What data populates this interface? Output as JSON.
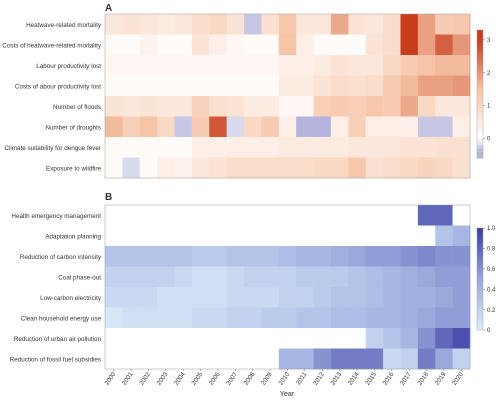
{
  "panels": {
    "a_label": "A",
    "b_label": "B"
  },
  "x_axis": {
    "title": "Year",
    "years": [
      "2000",
      "2001",
      "2002",
      "2003",
      "2004",
      "2005",
      "2006",
      "2007",
      "2008",
      "2009",
      "2010",
      "2011",
      "2012",
      "2013",
      "2014",
      "2015",
      "2016",
      "2017",
      "2018",
      "2019",
      "2020"
    ]
  },
  "chart_data": [
    {
      "type": "heatmap",
      "panel": "A",
      "colormap": "white-to-red",
      "colors": {
        "low": "#ffffff",
        "mid": "#f6c4a6",
        "high": "#c83c1e",
        "negative": "#b4b4dc"
      },
      "colorbar_ticks": [
        "0",
        "1",
        "2",
        "3"
      ],
      "vmin": -0.6,
      "vmax": 3.3,
      "x": [
        "2000",
        "2001",
        "2002",
        "2003",
        "2004",
        "2005",
        "2006",
        "2007",
        "2008",
        "2009",
        "2010",
        "2011",
        "2012",
        "2013",
        "2014",
        "2015",
        "2016",
        "2017",
        "2018",
        "2019",
        "2020"
      ],
      "rows": [
        {
          "label": "Heatwave-related mortality",
          "values": [
            0.6,
            0.7,
            0.6,
            0.5,
            0.6,
            0.9,
            1.0,
            0.7,
            -0.3,
            0.8,
            1.4,
            0.6,
            0.6,
            1.8,
            0.7,
            0.6,
            0.9,
            3.1,
            1.9,
            1.3,
            1.4
          ]
        },
        {
          "label": "Costs of heatwave-related mortality",
          "values": [
            0.1,
            0.1,
            0.3,
            0.1,
            0.1,
            0.7,
            0.4,
            0.2,
            0.1,
            0.1,
            1.5,
            0.4,
            0.1,
            0.1,
            0.1,
            0.7,
            0.9,
            3.0,
            1.9,
            2.6,
            2.0
          ]
        },
        {
          "label": "Labour productivity lost",
          "values": [
            0.2,
            0.2,
            0.2,
            0.2,
            0.2,
            0.2,
            0.2,
            0.2,
            0.2,
            0.2,
            0.4,
            0.4,
            0.5,
            0.7,
            0.6,
            0.6,
            1.0,
            1.3,
            1.5,
            1.6,
            1.6
          ]
        },
        {
          "label": "Costs of abour productivity lost",
          "values": [
            0.1,
            0.1,
            0.1,
            0.1,
            0.1,
            0.1,
            0.1,
            0.1,
            0.1,
            0.1,
            0.5,
            0.5,
            0.7,
            0.9,
            0.8,
            0.9,
            1.3,
            1.6,
            1.9,
            1.9,
            2.0
          ]
        },
        {
          "label": "Number of floods",
          "values": [
            0.7,
            0.6,
            0.7,
            0.6,
            0.6,
            1.1,
            0.8,
            0.7,
            0.5,
            0.5,
            0.2,
            0.2,
            1.2,
            1.3,
            1.2,
            1.4,
            1.3,
            1.8,
            1.0,
            0.6,
            0.6
          ]
        },
        {
          "label": "Number of droughts",
          "values": [
            1.6,
            1.2,
            1.5,
            1.0,
            -0.3,
            1.3,
            2.7,
            -0.2,
            1.0,
            1.3,
            0.4,
            -0.4,
            -0.4,
            0.4,
            1.2,
            0.4,
            0.4,
            0.4,
            -0.3,
            -0.3,
            0.4
          ]
        },
        {
          "label": "Climate suitability for dengue fever",
          "values": [
            0.1,
            0.1,
            0.1,
            0.1,
            0.1,
            0.4,
            0.4,
            0.4,
            0.4,
            0.4,
            0.5,
            0.5,
            0.5,
            0.5,
            0.6,
            0.6,
            0.6,
            0.7,
            0.7,
            0.8,
            0.8
          ]
        },
        {
          "label": "Exposure to wildfire",
          "values": [
            0.1,
            -0.2,
            0.1,
            0.4,
            0.3,
            0.6,
            0.7,
            0.9,
            0.9,
            0.9,
            0.9,
            0.9,
            1.0,
            1.0,
            1.4,
            0.8,
            0.9,
            1.0,
            1.1,
            1.0,
            0.8
          ]
        }
      ]
    },
    {
      "type": "heatmap",
      "panel": "B",
      "colormap": "light-blue-to-navy",
      "colors": {
        "low": "#dceefa",
        "mid": "#9aa8dc",
        "high": "#3a3aa4",
        "empty": "#ffffff"
      },
      "colorbar_ticks": [
        "0",
        "0.2",
        "0.4",
        "0.6",
        "0.8",
        "1.0"
      ],
      "vmin": 0,
      "vmax": 1.0,
      "x": [
        "2000",
        "2001",
        "2002",
        "2003",
        "2004",
        "2005",
        "2006",
        "2007",
        "2008",
        "2009",
        "2010",
        "2011",
        "2012",
        "2013",
        "2014",
        "2015",
        "2016",
        "2017",
        "2018",
        "2019",
        "2020"
      ],
      "rows": [
        {
          "label": "Health emergency management",
          "values": [
            null,
            null,
            null,
            null,
            null,
            null,
            null,
            null,
            null,
            null,
            null,
            null,
            null,
            null,
            null,
            null,
            null,
            null,
            0.8,
            0.8,
            null
          ]
        },
        {
          "label": "Adaptation planning",
          "values": [
            null,
            null,
            null,
            null,
            null,
            null,
            null,
            null,
            null,
            null,
            null,
            null,
            null,
            null,
            null,
            null,
            null,
            null,
            null,
            0.3,
            0.4
          ]
        },
        {
          "label": "Reduction of carbon intensity",
          "values": [
            0.3,
            0.3,
            0.3,
            0.3,
            0.3,
            0.25,
            0.25,
            0.3,
            0.3,
            0.3,
            0.35,
            0.4,
            0.4,
            0.45,
            0.5,
            0.55,
            0.55,
            0.6,
            0.65,
            0.6,
            0.6
          ]
        },
        {
          "label": "Coal phase-out",
          "values": [
            0.2,
            0.2,
            0.2,
            0.2,
            0.15,
            0.1,
            0.1,
            0.15,
            0.2,
            0.2,
            0.2,
            0.25,
            0.25,
            0.25,
            0.3,
            0.35,
            0.4,
            0.45,
            0.5,
            0.55,
            0.55
          ]
        },
        {
          "label": "Low-carbon electricity",
          "values": [
            0.15,
            0.15,
            0.15,
            0.1,
            0.1,
            0.1,
            0.1,
            0.15,
            0.15,
            0.15,
            0.2,
            0.2,
            0.25,
            0.3,
            0.3,
            0.35,
            0.4,
            0.45,
            0.45,
            0.5,
            0.55
          ]
        },
        {
          "label": "Clean household energy use",
          "values": [
            0.05,
            0.1,
            0.1,
            0.1,
            0.1,
            0.15,
            0.15,
            0.2,
            0.2,
            0.25,
            0.25,
            0.3,
            0.3,
            0.35,
            0.35,
            0.4,
            0.4,
            0.45,
            0.5,
            0.55,
            0.55
          ]
        },
        {
          "label": "Reduction of urban air pollution",
          "values": [
            null,
            null,
            null,
            null,
            null,
            null,
            null,
            null,
            null,
            null,
            null,
            null,
            null,
            null,
            null,
            0.2,
            0.3,
            0.4,
            0.6,
            0.8,
            0.9
          ]
        },
        {
          "label": "Reduction of fossil fuel subsidies",
          "values": [
            null,
            null,
            null,
            null,
            null,
            null,
            null,
            null,
            null,
            null,
            0.4,
            0.4,
            0.6,
            0.7,
            0.7,
            0.7,
            0.15,
            0.2,
            0.7,
            0.5,
            0.2
          ]
        }
      ]
    }
  ]
}
